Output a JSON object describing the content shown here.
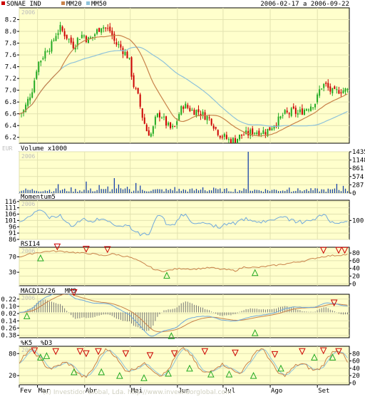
{
  "header": {
    "series_label": "SONAE IND",
    "ma20_label": "MM20",
    "ma50_label": "MM50",
    "date_range": "2006-02-17 a 2006-09-22",
    "year_watermark": "2006",
    "currency": "EUR"
  },
  "colors": {
    "background": "#ffffff",
    "panel_bg": "#ffffcc",
    "grid": "#e2e2b0",
    "candle_up": "#22aa22",
    "candle_down": "#cc0000",
    "ma20": "#c8824a",
    "ma50": "#8ec2da",
    "volume": "#1a44aa",
    "momentum": "#6fa8dc",
    "rsi": "#c8824a",
    "macd": "#6fa8dc",
    "macd_signal": "#c8824a",
    "hist": "#777777",
    "marker_sell": "#cc0000",
    "marker_buy": "#22aa22"
  },
  "watermark": "(c) Investidor Global, Lda.   http://www.investidorglobal.com",
  "x_axis": {
    "months": [
      {
        "label": "Fev",
        "day": 0
      },
      {
        "label": "Mar",
        "day": 12
      },
      {
        "label": "Abr",
        "day": 43
      },
      {
        "label": "Mai",
        "day": 73
      },
      {
        "label": "Jun",
        "day": 104
      },
      {
        "label": "Jul",
        "day": 134
      },
      {
        "label": "Ago",
        "day": 165
      },
      {
        "label": "Set",
        "day": 196
      }
    ],
    "total_days": 217
  },
  "chart_data": [
    {
      "type": "candlestick",
      "name": "SONAE IND",
      "ylim": [
        6.1,
        8.4
      ],
      "yticks": [
        6.2,
        6.4,
        6.6,
        6.8,
        7.0,
        7.2,
        7.4,
        7.6,
        7.8,
        8.0,
        8.2
      ],
      "grid": true,
      "price_path": [
        [
          0,
          6.6
        ],
        [
          3,
          6.65
        ],
        [
          6,
          6.85
        ],
        [
          9,
          7.05
        ],
        [
          12,
          7.45
        ],
        [
          15,
          7.55
        ],
        [
          18,
          7.7
        ],
        [
          21,
          7.75
        ],
        [
          24,
          7.95
        ],
        [
          27,
          8.05
        ],
        [
          30,
          7.95
        ],
        [
          33,
          7.85
        ],
        [
          36,
          7.75
        ],
        [
          39,
          7.9
        ],
        [
          42,
          7.95
        ],
        [
          45,
          7.85
        ],
        [
          48,
          7.9
        ],
        [
          51,
          8.0
        ],
        [
          54,
          8.1
        ],
        [
          57,
          8.05
        ],
        [
          60,
          8.0
        ],
        [
          63,
          7.8
        ],
        [
          66,
          7.75
        ],
        [
          69,
          7.65
        ],
        [
          72,
          7.55
        ],
        [
          75,
          7.1
        ],
        [
          78,
          6.9
        ],
        [
          81,
          6.55
        ],
        [
          84,
          6.3
        ],
        [
          87,
          6.25
        ],
        [
          90,
          6.55
        ],
        [
          93,
          6.6
        ],
        [
          96,
          6.45
        ],
        [
          99,
          6.35
        ],
        [
          102,
          6.35
        ],
        [
          105,
          6.6
        ],
        [
          108,
          6.75
        ],
        [
          111,
          6.7
        ],
        [
          114,
          6.65
        ],
        [
          117,
          6.65
        ],
        [
          120,
          6.6
        ],
        [
          123,
          6.55
        ],
        [
          126,
          6.5
        ],
        [
          129,
          6.35
        ],
        [
          132,
          6.25
        ],
        [
          135,
          6.2
        ],
        [
          138,
          6.15
        ],
        [
          141,
          6.15
        ],
        [
          144,
          6.2
        ],
        [
          147,
          6.25
        ],
        [
          150,
          6.25
        ],
        [
          153,
          6.3
        ],
        [
          156,
          6.3
        ],
        [
          159,
          6.3
        ],
        [
          162,
          6.3
        ],
        [
          165,
          6.35
        ],
        [
          168,
          6.45
        ],
        [
          171,
          6.5
        ],
        [
          174,
          6.6
        ],
        [
          177,
          6.6
        ],
        [
          180,
          6.65
        ],
        [
          183,
          6.6
        ],
        [
          186,
          6.65
        ],
        [
          189,
          6.7
        ],
        [
          192,
          6.75
        ],
        [
          195,
          6.8
        ],
        [
          198,
          7.05
        ],
        [
          201,
          7.1
        ],
        [
          204,
          7.0
        ],
        [
          207,
          6.95
        ],
        [
          210,
          7.0
        ],
        [
          213,
          7.0
        ],
        [
          217,
          7.0
        ]
      ]
    },
    {
      "type": "bar",
      "name": "Volume x1000",
      "ylim": [
        0,
        1435
      ],
      "yticks": [
        0,
        287,
        574,
        861,
        1148,
        1435
      ],
      "tall_bars": [
        [
          150,
          1435
        ],
        [
          25,
          310
        ],
        [
          34,
          200
        ],
        [
          44,
          400
        ],
        [
          52,
          280
        ],
        [
          58,
          230
        ],
        [
          62,
          520
        ],
        [
          66,
          300
        ],
        [
          71,
          220
        ],
        [
          76,
          350
        ],
        [
          80,
          260
        ],
        [
          102,
          210
        ],
        [
          120,
          200
        ],
        [
          128,
          190
        ],
        [
          178,
          190
        ],
        [
          209,
          320
        ],
        [
          213,
          250
        ]
      ]
    },
    {
      "type": "line",
      "name": "Momentum5",
      "ylim": [
        86,
        117
      ],
      "yticks": [
        86,
        91,
        96,
        101,
        106,
        111,
        116
      ],
      "reference_label": "100"
    },
    {
      "type": "line",
      "name": "RSI14",
      "ylim": [
        -5,
        95
      ],
      "yticks": [
        0,
        20,
        40,
        60,
        80
      ],
      "left_ticks": [
        30,
        70
      ],
      "rsi_path": [
        [
          0,
          70
        ],
        [
          10,
          80
        ],
        [
          20,
          85
        ],
        [
          30,
          84
        ],
        [
          40,
          80
        ],
        [
          48,
          78
        ],
        [
          55,
          73
        ],
        [
          62,
          78
        ],
        [
          66,
          74
        ],
        [
          72,
          70
        ],
        [
          78,
          60
        ],
        [
          84,
          48
        ],
        [
          90,
          35
        ],
        [
          96,
          33
        ],
        [
          102,
          38
        ],
        [
          108,
          40
        ],
        [
          114,
          38
        ],
        [
          120,
          40
        ],
        [
          126,
          42
        ],
        [
          132,
          38
        ],
        [
          138,
          36
        ],
        [
          142,
          34
        ],
        [
          148,
          44
        ],
        [
          156,
          42
        ],
        [
          164,
          46
        ],
        [
          172,
          50
        ],
        [
          180,
          55
        ],
        [
          188,
          60
        ],
        [
          196,
          68
        ],
        [
          202,
          72
        ],
        [
          208,
          74
        ],
        [
          212,
          75
        ],
        [
          217,
          76
        ]
      ]
    },
    {
      "type": "line",
      "name": "MACD12/26",
      "signal_name": "MM9",
      "ylim": [
        -0.42,
        0.3
      ],
      "yticks": [
        -0.38,
        -0.26,
        -0.14,
        -0.02,
        0.1,
        0.22
      ]
    },
    {
      "type": "line",
      "name": "%K5",
      "series_2_name": "%D3",
      "ylim": [
        -5,
        100
      ],
      "yticks": [
        0,
        20,
        40,
        60,
        80
      ],
      "left_ticks": [
        20,
        80
      ]
    }
  ]
}
